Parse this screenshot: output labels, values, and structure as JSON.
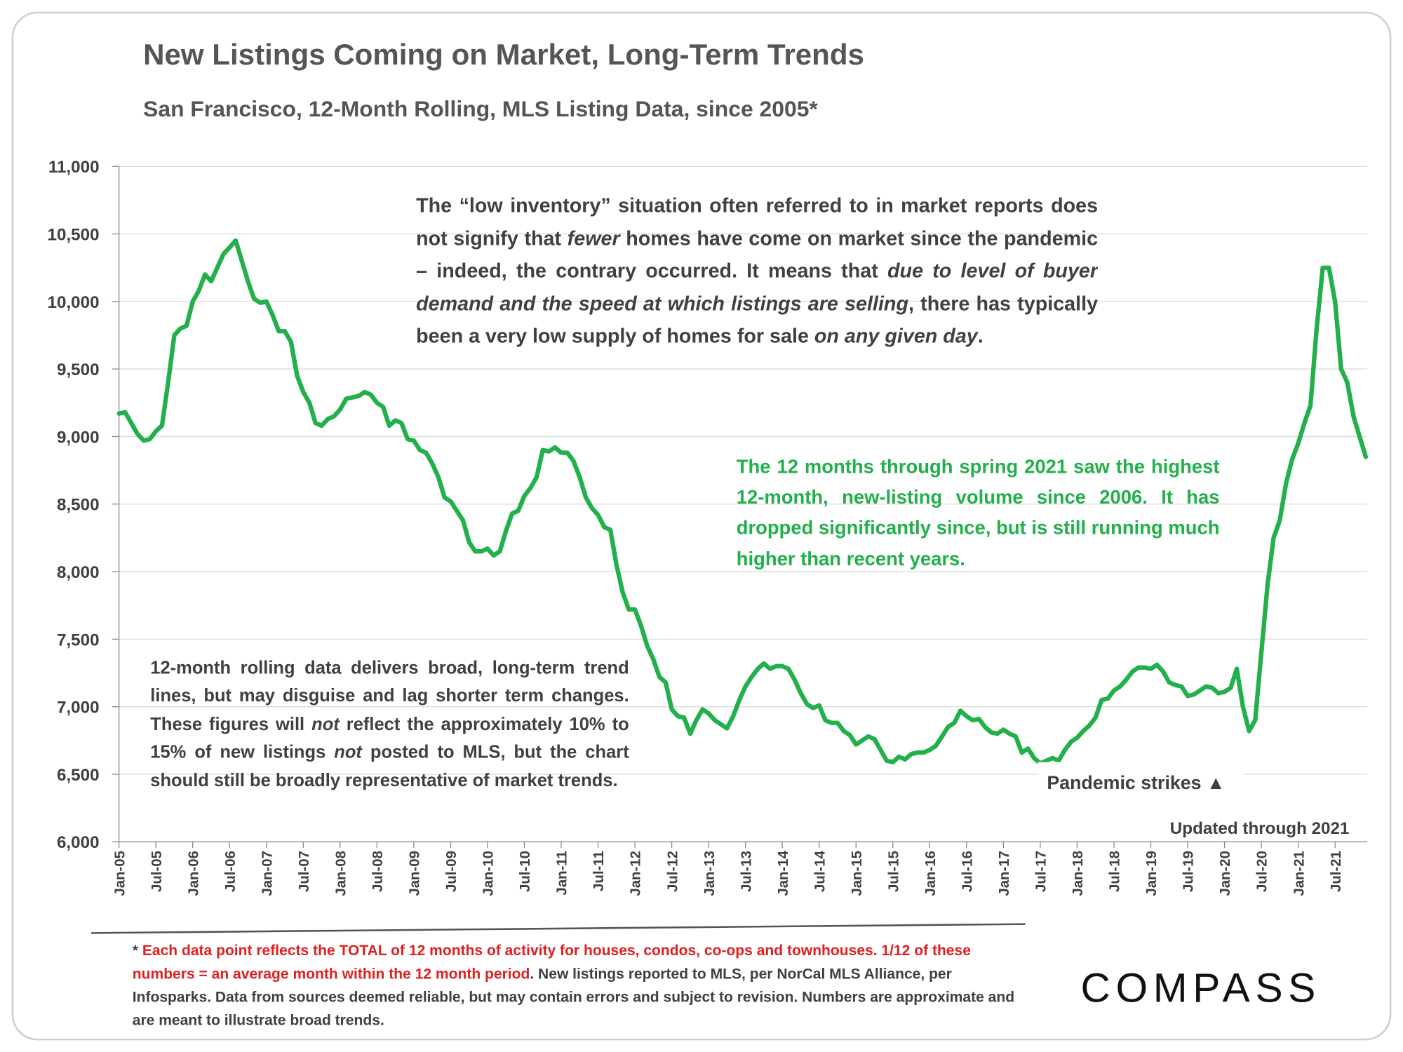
{
  "chart_data": {
    "type": "line",
    "title": "New Listings Coming on Market, Long-Term Trends",
    "subtitle": "San Francisco, 12-Month Rolling, MLS Listing Data, since 2005*",
    "categories": [
      "Jan-05",
      null,
      null,
      null,
      null,
      null,
      "Jul-05",
      null,
      null,
      null,
      null,
      null,
      "Jan-06",
      null,
      null,
      null,
      null,
      null,
      "Jul-06",
      null,
      null,
      null,
      null,
      null,
      "Jan-07",
      null,
      null,
      null,
      null,
      null,
      "Jul-07",
      null,
      null,
      null,
      null,
      null,
      "Jan-08",
      null,
      null,
      null,
      null,
      null,
      "Jul-08",
      null,
      null,
      null,
      null,
      null,
      "Jan-09",
      null,
      null,
      null,
      null,
      null,
      "Jul-09",
      null,
      null,
      null,
      null,
      null,
      "Jan-10",
      null,
      null,
      null,
      null,
      null,
      "Jul-10",
      null,
      null,
      null,
      null,
      null,
      "Jan-11",
      null,
      null,
      null,
      null,
      null,
      "Jul-11",
      null,
      null,
      null,
      null,
      null,
      "Jan-12",
      null,
      null,
      null,
      null,
      null,
      "Jul-12",
      null,
      null,
      null,
      null,
      null,
      "Jan-13",
      null,
      null,
      null,
      null,
      null,
      "Jul-13",
      null,
      null,
      null,
      null,
      null,
      "Jan-14",
      null,
      null,
      null,
      null,
      null,
      "Jul-14",
      null,
      null,
      null,
      null,
      null,
      "Jan-15",
      null,
      null,
      null,
      null,
      null,
      "Jul-15",
      null,
      null,
      null,
      null,
      null,
      "Jan-16",
      null,
      null,
      null,
      null,
      null,
      "Jul-16",
      null,
      null,
      null,
      null,
      null,
      "Jan-17",
      null,
      null,
      null,
      null,
      null,
      "Jul-17",
      null,
      null,
      null,
      null,
      null,
      "Jan-18",
      null,
      null,
      null,
      null,
      null,
      "Jul-18",
      null,
      null,
      null,
      null,
      null,
      "Jan-19",
      null,
      null,
      null,
      null,
      null,
      "Jul-19",
      null,
      null,
      null,
      null,
      null,
      "Jan-20",
      null,
      null,
      null,
      null,
      null,
      "Jul-20",
      null,
      null,
      null,
      null,
      null,
      "Jan-21",
      null,
      null,
      null,
      null,
      null,
      "Jul-21",
      null,
      null,
      null,
      null,
      null
    ],
    "series": [
      {
        "name": "New listings, 12-month rolling",
        "color": "#22b04b",
        "values": [
          9170,
          9180,
          9100,
          9020,
          8970,
          8980,
          9040,
          9080,
          9400,
          9750,
          9800,
          9820,
          10000,
          10080,
          10200,
          10150,
          10250,
          10350,
          10400,
          10450,
          10300,
          10150,
          10020,
          9990,
          10000,
          9900,
          9780,
          9780,
          9700,
          9450,
          9330,
          9250,
          9100,
          9080,
          9130,
          9150,
          9200,
          9280,
          9290,
          9300,
          9330,
          9310,
          9250,
          9220,
          9080,
          9120,
          9100,
          8980,
          8970,
          8900,
          8880,
          8800,
          8700,
          8550,
          8520,
          8450,
          8380,
          8220,
          8150,
          8150,
          8170,
          8120,
          8150,
          8300,
          8430,
          8450,
          8560,
          8620,
          8700,
          8900,
          8890,
          8920,
          8880,
          8880,
          8820,
          8700,
          8550,
          8470,
          8420,
          8330,
          8310,
          8050,
          7850,
          7720,
          7720,
          7600,
          7450,
          7350,
          7220,
          7180,
          6980,
          6930,
          6920,
          6800,
          6900,
          6980,
          6950,
          6900,
          6870,
          6840,
          6930,
          7050,
          7150,
          7220,
          7280,
          7320,
          7280,
          7300,
          7300,
          7280,
          7200,
          7100,
          7020,
          6990,
          7010,
          6900,
          6880,
          6880,
          6820,
          6790,
          6720,
          6750,
          6780,
          6760,
          6680,
          6600,
          6590,
          6630,
          6610,
          6650,
          6660,
          6660,
          6680,
          6710,
          6780,
          6850,
          6880,
          6970,
          6930,
          6900,
          6910,
          6850,
          6810,
          6800,
          6830,
          6800,
          6780,
          6660,
          6690,
          6620,
          6580,
          6600,
          6620,
          6600,
          6680,
          6740,
          6770,
          6820,
          6860,
          6920,
          7050,
          7060,
          7120,
          7150,
          7200,
          7260,
          7290,
          7290,
          7280,
          7310,
          7260,
          7180,
          7160,
          7150,
          7080,
          7090,
          7120,
          7150,
          7140,
          7100,
          7110,
          7140,
          7280,
          7000,
          6820,
          6900,
          7400,
          7900,
          8250,
          8380,
          8650,
          8830,
          8950,
          9100,
          9230,
          9800,
          10250,
          10250,
          10000,
          9500,
          9400,
          9150,
          9000,
          8850
        ]
      }
    ],
    "ylim": [
      6000,
      11000
    ],
    "yticks": [
      {
        "value": 6000,
        "label": "6,000"
      },
      {
        "value": 6500,
        "label": "6,500"
      },
      {
        "value": 7000,
        "label": "7,000"
      },
      {
        "value": 7500,
        "label": "7,500"
      },
      {
        "value": 8000,
        "label": "8,000"
      },
      {
        "value": 8500,
        "label": "8,500"
      },
      {
        "value": 9000,
        "label": "9,000"
      },
      {
        "value": 9500,
        "label": "9,500"
      },
      {
        "value": 10000,
        "label": "10,000"
      },
      {
        "value": 10500,
        "label": "10,500"
      },
      {
        "value": 11000,
        "label": "11,000"
      }
    ],
    "grid": true,
    "annotations": [
      {
        "color": "#404040",
        "runs": [
          {
            "text": "The “low inventory” situation often referred to in market reports does not signify that ",
            "italic": false
          },
          {
            "text": "fewer",
            "italic": true
          },
          {
            "text": " homes have come on market since the pandemic – indeed, the contrary occurred. It means that ",
            "italic": false
          },
          {
            "text": "due to level of buyer demand and the speed at which listings are selling",
            "italic": true
          },
          {
            "text": ", there has typically been a very low supply of homes for sale ",
            "italic": false
          },
          {
            "text": "on any given day",
            "italic": true
          },
          {
            "text": ".",
            "italic": false
          }
        ]
      },
      {
        "color": "#22b04b",
        "runs": [
          {
            "text": "The 12 months through spring 2021 saw the highest 12-month, new-listing volume since 2006. It has dropped significantly since, but is still running much higher than recent years.",
            "italic": false
          }
        ]
      },
      {
        "color": "#404040",
        "runs": [
          {
            "text": "12-month rolling data delivers broad, long-term trend lines, but may disguise and lag shorter term changes. These figures will ",
            "italic": false
          },
          {
            "text": "not",
            "italic": true
          },
          {
            "text": " reflect the approximately 10% to 15% of new listings ",
            "italic": false
          },
          {
            "text": "not",
            "italic": true
          },
          {
            "text": " posted to MLS, but the chart should still be broadly representative of market trends.",
            "italic": false
          }
        ]
      }
    ],
    "event_label": "Pandemic strikes ▲",
    "updated_label": "Updated through 2021",
    "footnote": [
      {
        "text": "* ",
        "color": "#404040"
      },
      {
        "text": "Each data point reflects the TOTAL of 12 months of activity for houses, condos, co-ops and townhouses. 1/12 of these numbers = an average month within the 12 month period",
        "color": "#e02020"
      },
      {
        "text": ". New listings reported to MLS, per NorCal MLS Alliance, per Infosparks. Data from sources deemed reliable, but may contain errors and subject to revision. Numbers are approximate and are meant to illustrate broad trends.",
        "color": "#404040"
      }
    ],
    "logo": "COMPASS"
  }
}
